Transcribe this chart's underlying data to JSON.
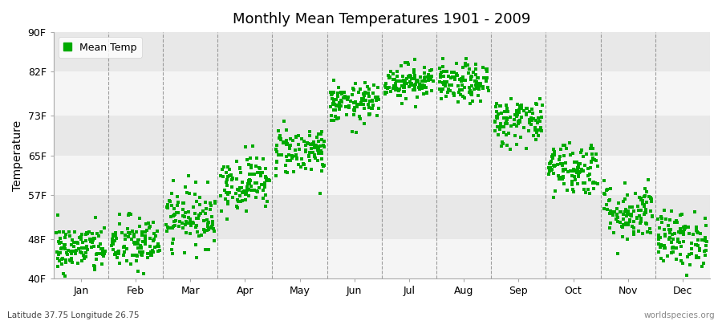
{
  "title": "Monthly Mean Temperatures 1901 - 2009",
  "ylabel": "Temperature",
  "yticks": [
    40,
    48,
    57,
    65,
    73,
    82,
    90
  ],
  "ytick_labels": [
    "40F",
    "48F",
    "57F",
    "65F",
    "73F",
    "82F",
    "90F"
  ],
  "ylim": [
    40,
    90
  ],
  "months": [
    "Jan",
    "Feb",
    "Mar",
    "Apr",
    "May",
    "Jun",
    "Jul",
    "Aug",
    "Sep",
    "Oct",
    "Nov",
    "Dec"
  ],
  "legend_label": "Mean Temp",
  "dot_color": "#00AA00",
  "bg_color": "#FFFFFF",
  "plot_bg_color": "#EBEBEB",
  "band_color_light": "#F5F5F5",
  "band_color_dark": "#E8E8E8",
  "bottom_left_text": "Latitude 37.75 Longitude 26.75",
  "bottom_right_text": "worldspecies.org",
  "monthly_means": [
    46.0,
    47.0,
    52.5,
    59.5,
    66.0,
    75.5,
    80.0,
    79.5,
    72.0,
    62.5,
    53.5,
    48.0
  ],
  "monthly_stds": [
    2.5,
    2.8,
    3.0,
    2.8,
    2.5,
    2.0,
    1.8,
    2.0,
    2.5,
    2.8,
    3.0,
    2.8
  ],
  "n_years": 109
}
